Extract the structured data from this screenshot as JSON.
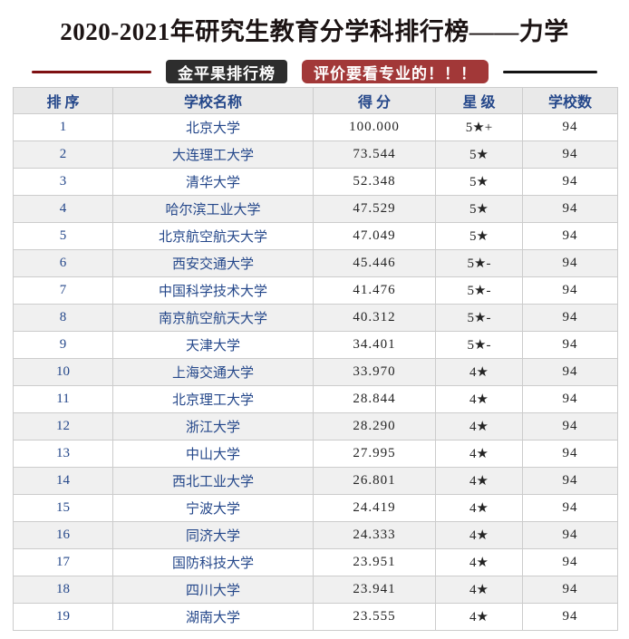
{
  "title": "2020-2021年研究生教育分学科排行榜——力学",
  "header_band": {
    "brand_badge": "金平果排行榜",
    "slogan_badge": "评价要看专业的！！！"
  },
  "colors": {
    "title_text": "#1c1414",
    "navy_text": "#24478a",
    "dark_red_line": "#7e1012",
    "black_line": "#141414",
    "dark_badge_bg": "#2d2d2d",
    "red_badge_bg": "#a23838",
    "header_row_bg": "#e9e9e9",
    "alt_row_bg": "#f0f0f0",
    "table_border": "#cccccc"
  },
  "table": {
    "headers": [
      "排 序",
      "学校名称",
      "得 分",
      "星 级",
      "学校数"
    ],
    "rows": [
      [
        "1",
        "北京大学",
        "100.000",
        "5★+",
        "94"
      ],
      [
        "2",
        "大连理工大学",
        "73.544",
        "5★",
        "94"
      ],
      [
        "3",
        "清华大学",
        "52.348",
        "5★",
        "94"
      ],
      [
        "4",
        "哈尔滨工业大学",
        "47.529",
        "5★",
        "94"
      ],
      [
        "5",
        "北京航空航天大学",
        "47.049",
        "5★",
        "94"
      ],
      [
        "6",
        "西安交通大学",
        "45.446",
        "5★-",
        "94"
      ],
      [
        "7",
        "中国科学技术大学",
        "41.476",
        "5★-",
        "94"
      ],
      [
        "8",
        "南京航空航天大学",
        "40.312",
        "5★-",
        "94"
      ],
      [
        "9",
        "天津大学",
        "34.401",
        "5★-",
        "94"
      ],
      [
        "10",
        "上海交通大学",
        "33.970",
        "4★",
        "94"
      ],
      [
        "11",
        "北京理工大学",
        "28.844",
        "4★",
        "94"
      ],
      [
        "12",
        "浙江大学",
        "28.290",
        "4★",
        "94"
      ],
      [
        "13",
        "中山大学",
        "27.995",
        "4★",
        "94"
      ],
      [
        "14",
        "西北工业大学",
        "26.801",
        "4★",
        "94"
      ],
      [
        "15",
        "宁波大学",
        "24.419",
        "4★",
        "94"
      ],
      [
        "16",
        "同济大学",
        "24.333",
        "4★",
        "94"
      ],
      [
        "17",
        "国防科技大学",
        "23.951",
        "4★",
        "94"
      ],
      [
        "18",
        "四川大学",
        "23.941",
        "4★",
        "94"
      ],
      [
        "19",
        "湖南大学",
        "23.555",
        "4★",
        "94"
      ]
    ]
  }
}
